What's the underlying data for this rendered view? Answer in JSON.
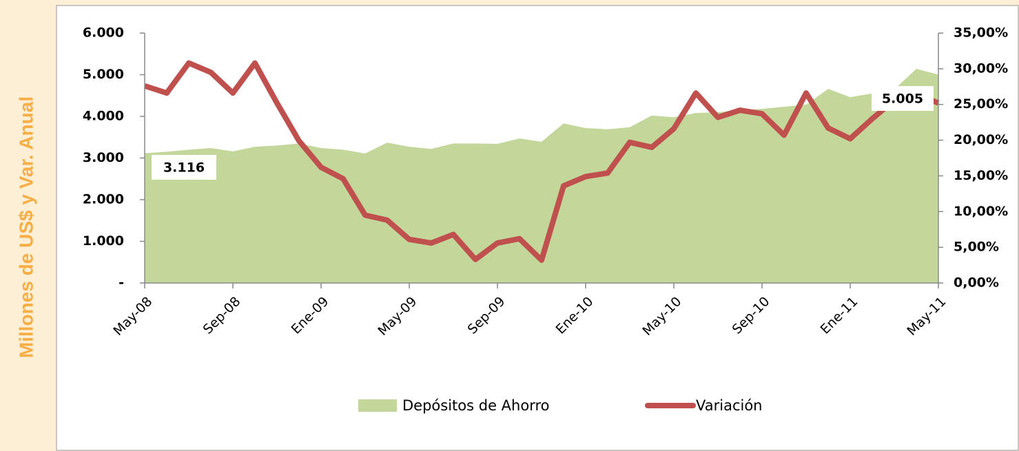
{
  "chart_data": {
    "type": "area",
    "y_label": "Millones de US$ y Var. Anual",
    "categories": [
      "May-08",
      null,
      null,
      null,
      "Sep-08",
      null,
      null,
      null,
      "Ene-09",
      null,
      null,
      null,
      "May-09",
      null,
      null,
      null,
      "Sep-09",
      null,
      null,
      null,
      "Ene-10",
      null,
      null,
      null,
      "May-10",
      null,
      null,
      null,
      "Sep-10",
      null,
      null,
      null,
      "Ene-11",
      null,
      null,
      null,
      "May-11"
    ],
    "series": [
      {
        "name": "Depósitos de Ahorro",
        "type": "area",
        "color": "#c4d79b",
        "values": [
          3116,
          3150,
          3200,
          3240,
          3160,
          3270,
          3300,
          3350,
          3240,
          3200,
          3110,
          3370,
          3270,
          3220,
          3350,
          3350,
          3340,
          3470,
          3390,
          3830,
          3720,
          3690,
          3740,
          4020,
          3980,
          4080,
          4100,
          4150,
          4180,
          4230,
          4280,
          4660,
          4460,
          4550,
          4650,
          5140,
          5005
        ],
        "value_labels": [
          "3.116",
          null,
          null,
          null,
          null,
          null,
          null,
          null,
          null,
          null,
          null,
          null,
          null,
          null,
          null,
          null,
          null,
          null,
          null,
          null,
          null,
          null,
          null,
          null,
          null,
          null,
          null,
          null,
          null,
          null,
          null,
          null,
          null,
          null,
          null,
          null,
          "5.005"
        ]
      },
      {
        "name": "Variación",
        "type": "line",
        "axis": "y2",
        "color": "#c0504d",
        "values": [
          27.6,
          26.6,
          30.8,
          29.5,
          26.6,
          30.8,
          25.2,
          19.9,
          16.2,
          14.6,
          9.5,
          8.8,
          6.1,
          5.6,
          6.8,
          3.3,
          5.6,
          6.2,
          3.2,
          13.6,
          14.9,
          15.4,
          19.7,
          19.0,
          21.6,
          26.6,
          23.2,
          24.2,
          23.7,
          20.7,
          26.6,
          21.7,
          20.2,
          23.0,
          25.6,
          26.5,
          25.2
        ]
      }
    ],
    "ylim": [
      0,
      6000
    ],
    "yticks": [
      {
        "value": 0,
        "label": "-"
      },
      {
        "value": 1000,
        "label": "1.000"
      },
      {
        "value": 2000,
        "label": "2.000"
      },
      {
        "value": 3000,
        "label": "3.000"
      },
      {
        "value": 4000,
        "label": "4.000"
      },
      {
        "value": 5000,
        "label": "5.000"
      },
      {
        "value": 6000,
        "label": "6.000"
      }
    ],
    "y2lim": [
      0,
      35
    ],
    "y2ticks": [
      {
        "value": 0,
        "label": "0,00%"
      },
      {
        "value": 5,
        "label": "5,00%"
      },
      {
        "value": 10,
        "label": "10,00%"
      },
      {
        "value": 15,
        "label": "15,00%"
      },
      {
        "value": 20,
        "label": "20,00%"
      },
      {
        "value": 25,
        "label": "25,00%"
      },
      {
        "value": 30,
        "label": "30,00%"
      },
      {
        "value": 35,
        "label": "35,00%"
      }
    ],
    "legend": "bottom"
  }
}
